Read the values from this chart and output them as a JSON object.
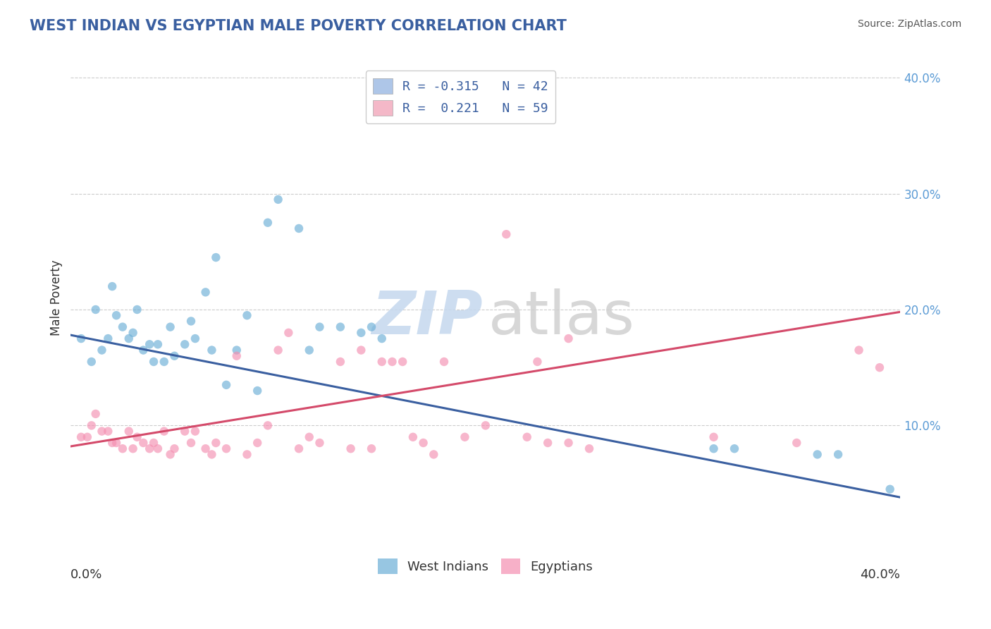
{
  "title": "WEST INDIAN VS EGYPTIAN MALE POVERTY CORRELATION CHART",
  "source": "Source: ZipAtlas.com",
  "ylabel": "Male Poverty",
  "right_yticks": [
    "40.0%",
    "30.0%",
    "20.0%",
    "10.0%"
  ],
  "right_ytick_vals": [
    0.4,
    0.3,
    0.2,
    0.1
  ],
  "xlim": [
    0.0,
    0.4
  ],
  "ylim": [
    0.0,
    0.42
  ],
  "legend_entries": [
    {
      "label": "R = -0.315   N = 42",
      "color": "#aec6e8"
    },
    {
      "label": "R =  0.221   N = 59",
      "color": "#f4b8c8"
    }
  ],
  "west_indian_color": "#6baed6",
  "egyptian_color": "#f48fb1",
  "west_indian_alpha": 0.65,
  "egyptian_alpha": 0.65,
  "marker_size": 80,
  "title_color": "#3a5fa0",
  "source_color": "#555555",
  "west_indian_points": [
    [
      0.005,
      0.175
    ],
    [
      0.01,
      0.155
    ],
    [
      0.012,
      0.2
    ],
    [
      0.015,
      0.165
    ],
    [
      0.018,
      0.175
    ],
    [
      0.02,
      0.22
    ],
    [
      0.022,
      0.195
    ],
    [
      0.025,
      0.185
    ],
    [
      0.028,
      0.175
    ],
    [
      0.03,
      0.18
    ],
    [
      0.032,
      0.2
    ],
    [
      0.035,
      0.165
    ],
    [
      0.038,
      0.17
    ],
    [
      0.04,
      0.155
    ],
    [
      0.042,
      0.17
    ],
    [
      0.045,
      0.155
    ],
    [
      0.048,
      0.185
    ],
    [
      0.05,
      0.16
    ],
    [
      0.055,
      0.17
    ],
    [
      0.058,
      0.19
    ],
    [
      0.06,
      0.175
    ],
    [
      0.065,
      0.215
    ],
    [
      0.068,
      0.165
    ],
    [
      0.07,
      0.245
    ],
    [
      0.075,
      0.135
    ],
    [
      0.08,
      0.165
    ],
    [
      0.085,
      0.195
    ],
    [
      0.09,
      0.13
    ],
    [
      0.095,
      0.275
    ],
    [
      0.1,
      0.295
    ],
    [
      0.11,
      0.27
    ],
    [
      0.115,
      0.165
    ],
    [
      0.12,
      0.185
    ],
    [
      0.13,
      0.185
    ],
    [
      0.14,
      0.18
    ],
    [
      0.145,
      0.185
    ],
    [
      0.15,
      0.175
    ],
    [
      0.31,
      0.08
    ],
    [
      0.32,
      0.08
    ],
    [
      0.36,
      0.075
    ],
    [
      0.37,
      0.075
    ],
    [
      0.395,
      0.045
    ]
  ],
  "egyptian_points": [
    [
      0.005,
      0.09
    ],
    [
      0.008,
      0.09
    ],
    [
      0.01,
      0.1
    ],
    [
      0.012,
      0.11
    ],
    [
      0.015,
      0.095
    ],
    [
      0.018,
      0.095
    ],
    [
      0.02,
      0.085
    ],
    [
      0.022,
      0.085
    ],
    [
      0.025,
      0.08
    ],
    [
      0.028,
      0.095
    ],
    [
      0.03,
      0.08
    ],
    [
      0.032,
      0.09
    ],
    [
      0.035,
      0.085
    ],
    [
      0.038,
      0.08
    ],
    [
      0.04,
      0.085
    ],
    [
      0.042,
      0.08
    ],
    [
      0.045,
      0.095
    ],
    [
      0.048,
      0.075
    ],
    [
      0.05,
      0.08
    ],
    [
      0.055,
      0.095
    ],
    [
      0.058,
      0.085
    ],
    [
      0.06,
      0.095
    ],
    [
      0.065,
      0.08
    ],
    [
      0.068,
      0.075
    ],
    [
      0.07,
      0.085
    ],
    [
      0.075,
      0.08
    ],
    [
      0.08,
      0.16
    ],
    [
      0.085,
      0.075
    ],
    [
      0.09,
      0.085
    ],
    [
      0.095,
      0.1
    ],
    [
      0.1,
      0.165
    ],
    [
      0.105,
      0.18
    ],
    [
      0.11,
      0.08
    ],
    [
      0.115,
      0.09
    ],
    [
      0.12,
      0.085
    ],
    [
      0.13,
      0.155
    ],
    [
      0.135,
      0.08
    ],
    [
      0.14,
      0.165
    ],
    [
      0.145,
      0.08
    ],
    [
      0.15,
      0.155
    ],
    [
      0.155,
      0.155
    ],
    [
      0.16,
      0.155
    ],
    [
      0.165,
      0.09
    ],
    [
      0.17,
      0.085
    ],
    [
      0.175,
      0.075
    ],
    [
      0.18,
      0.155
    ],
    [
      0.19,
      0.09
    ],
    [
      0.2,
      0.1
    ],
    [
      0.21,
      0.265
    ],
    [
      0.22,
      0.09
    ],
    [
      0.225,
      0.155
    ],
    [
      0.23,
      0.085
    ],
    [
      0.24,
      0.175
    ],
    [
      0.24,
      0.085
    ],
    [
      0.25,
      0.08
    ],
    [
      0.31,
      0.09
    ],
    [
      0.35,
      0.085
    ],
    [
      0.38,
      0.165
    ],
    [
      0.39,
      0.15
    ]
  ],
  "west_indian_line": {
    "x_start": 0.0,
    "y_start": 0.178,
    "x_end": 0.4,
    "y_end": 0.038
  },
  "egyptian_line": {
    "x_start": 0.0,
    "y_start": 0.082,
    "x_end": 0.4,
    "y_end": 0.198
  },
  "grid_linestyle": "--",
  "grid_color": "#cccccc",
  "grid_linewidth": 0.8,
  "background_color": "#ffffff",
  "plot_bg_color": "#ffffff"
}
